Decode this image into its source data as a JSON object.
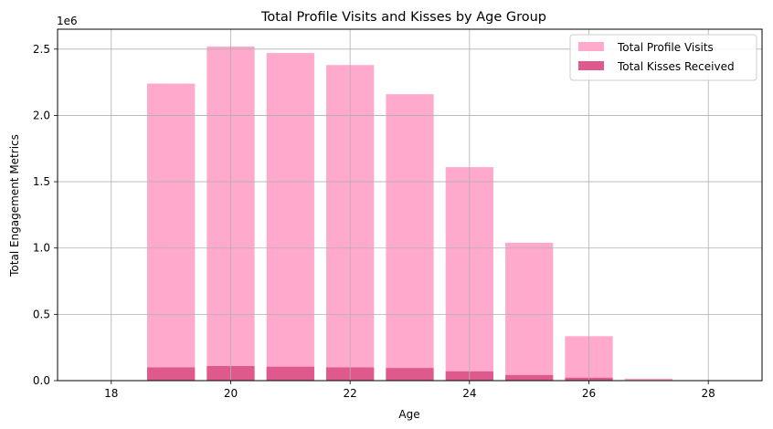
{
  "chart_data": {
    "type": "bar",
    "title": "Total Profile Visits and Kisses by Age Group",
    "xlabel": "Age",
    "ylabel": "Total Engagement Metrics",
    "y_multiplier_label": "1e6",
    "x": [
      19,
      20,
      21,
      22,
      23,
      24,
      25,
      26,
      27,
      28
    ],
    "xlim": [
      17.1,
      28.9
    ],
    "ylim": [
      0,
      2.65
    ],
    "xticks": [
      18,
      20,
      22,
      24,
      26,
      28
    ],
    "xtick_labels": [
      "18",
      "20",
      "22",
      "24",
      "26",
      "28"
    ],
    "yticks": [
      0,
      0.5,
      1.0,
      1.5,
      2.0,
      2.5
    ],
    "ytick_labels": [
      "0.0",
      "0.5",
      "1.0",
      "1.5",
      "2.0",
      "2.5"
    ],
    "grid": true,
    "legend_position": "top-right",
    "series": [
      {
        "name": "Total Profile Visits",
        "color": "#ffaacc",
        "values": [
          2.24,
          2.52,
          2.47,
          2.38,
          2.16,
          1.61,
          1.04,
          0.335,
          0.015,
          0.0
        ]
      },
      {
        "name": "Total Kisses Received",
        "color": "#de5a8c",
        "values": [
          0.1,
          0.11,
          0.105,
          0.1,
          0.095,
          0.07,
          0.042,
          0.022,
          0.0,
          0.0
        ]
      }
    ]
  }
}
